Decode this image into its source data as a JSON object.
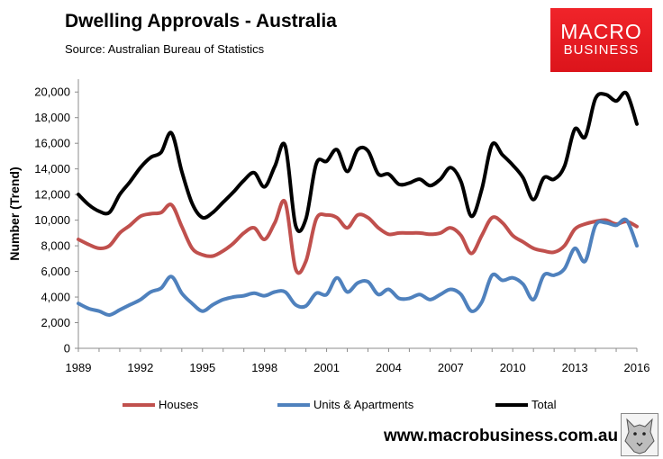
{
  "header": {
    "title": "Dwelling Approvals - Australia",
    "subtitle": "Source:  Australian Bureau of Statistics"
  },
  "logo": {
    "line1": "MACRO",
    "line2": "BUSINESS",
    "color": "#e31b23"
  },
  "footer": {
    "website": "www.macrobusiness.com.au"
  },
  "chart_data": {
    "type": "line",
    "title": "Dwelling Approvals - Australia",
    "xlabel": "",
    "ylabel": "Number (Trend)",
    "xlim": [
      1989,
      2016
    ],
    "ylim": [
      0,
      21000
    ],
    "x_ticks": [
      "1989",
      "1992",
      "1995",
      "1998",
      "2001",
      "2004",
      "2007",
      "2010",
      "2013",
      "2016"
    ],
    "y_ticks": [
      "0",
      "2,000",
      "4,000",
      "6,000",
      "8,000",
      "10,000",
      "12,000",
      "14,000",
      "16,000",
      "18,000",
      "20,000"
    ],
    "grid": false,
    "legend_position": "bottom",
    "series": [
      {
        "name": "Houses",
        "color": "#c0504d",
        "points": [
          [
            1989.0,
            8500
          ],
          [
            1989.5,
            8100
          ],
          [
            1990.0,
            7800
          ],
          [
            1990.5,
            8000
          ],
          [
            1991.0,
            9000
          ],
          [
            1991.5,
            9600
          ],
          [
            1992.0,
            10300
          ],
          [
            1992.5,
            10500
          ],
          [
            1993.0,
            10600
          ],
          [
            1993.5,
            11200
          ],
          [
            1994.0,
            9500
          ],
          [
            1994.5,
            7800
          ],
          [
            1995.0,
            7300
          ],
          [
            1995.5,
            7200
          ],
          [
            1996.0,
            7600
          ],
          [
            1996.5,
            8200
          ],
          [
            1997.0,
            9000
          ],
          [
            1997.5,
            9400
          ],
          [
            1998.0,
            8500
          ],
          [
            1998.5,
            9800
          ],
          [
            1999.0,
            11400
          ],
          [
            1999.5,
            6200
          ],
          [
            2000.0,
            6800
          ],
          [
            2000.5,
            10100
          ],
          [
            2001.0,
            10400
          ],
          [
            2001.5,
            10200
          ],
          [
            2002.0,
            9400
          ],
          [
            2002.5,
            10400
          ],
          [
            2003.0,
            10200
          ],
          [
            2003.5,
            9400
          ],
          [
            2004.0,
            8900
          ],
          [
            2004.5,
            9000
          ],
          [
            2005.0,
            9000
          ],
          [
            2005.5,
            9000
          ],
          [
            2006.0,
            8900
          ],
          [
            2006.5,
            9000
          ],
          [
            2007.0,
            9400
          ],
          [
            2007.5,
            8800
          ],
          [
            2008.0,
            7400
          ],
          [
            2008.5,
            8800
          ],
          [
            2009.0,
            10200
          ],
          [
            2009.5,
            9800
          ],
          [
            2010.0,
            8800
          ],
          [
            2010.5,
            8300
          ],
          [
            2011.0,
            7800
          ],
          [
            2011.5,
            7600
          ],
          [
            2012.0,
            7500
          ],
          [
            2012.5,
            8000
          ],
          [
            2013.0,
            9300
          ],
          [
            2013.5,
            9700
          ],
          [
            2014.0,
            9900
          ],
          [
            2014.5,
            10000
          ],
          [
            2015.0,
            9700
          ],
          [
            2015.5,
            9900
          ],
          [
            2016.0,
            9500
          ]
        ]
      },
      {
        "name": "Units & Apartments",
        "color": "#4f81bd",
        "points": [
          [
            1989.0,
            3500
          ],
          [
            1989.5,
            3100
          ],
          [
            1990.0,
            2900
          ],
          [
            1990.5,
            2600
          ],
          [
            1991.0,
            3000
          ],
          [
            1991.5,
            3400
          ],
          [
            1992.0,
            3800
          ],
          [
            1992.5,
            4400
          ],
          [
            1993.0,
            4700
          ],
          [
            1993.5,
            5600
          ],
          [
            1994.0,
            4300
          ],
          [
            1994.5,
            3500
          ],
          [
            1995.0,
            2900
          ],
          [
            1995.5,
            3400
          ],
          [
            1996.0,
            3800
          ],
          [
            1996.5,
            4000
          ],
          [
            1997.0,
            4100
          ],
          [
            1997.5,
            4300
          ],
          [
            1998.0,
            4100
          ],
          [
            1998.5,
            4400
          ],
          [
            1999.0,
            4400
          ],
          [
            1999.5,
            3400
          ],
          [
            2000.0,
            3300
          ],
          [
            2000.5,
            4300
          ],
          [
            2001.0,
            4200
          ],
          [
            2001.5,
            5500
          ],
          [
            2002.0,
            4400
          ],
          [
            2002.5,
            5100
          ],
          [
            2003.0,
            5200
          ],
          [
            2003.5,
            4200
          ],
          [
            2004.0,
            4600
          ],
          [
            2004.5,
            3900
          ],
          [
            2005.0,
            3900
          ],
          [
            2005.5,
            4200
          ],
          [
            2006.0,
            3800
          ],
          [
            2006.5,
            4200
          ],
          [
            2007.0,
            4600
          ],
          [
            2007.5,
            4200
          ],
          [
            2008.0,
            2900
          ],
          [
            2008.5,
            3600
          ],
          [
            2009.0,
            5700
          ],
          [
            2009.5,
            5300
          ],
          [
            2010.0,
            5500
          ],
          [
            2010.5,
            5000
          ],
          [
            2011.0,
            3800
          ],
          [
            2011.5,
            5700
          ],
          [
            2012.0,
            5700
          ],
          [
            2012.5,
            6200
          ],
          [
            2013.0,
            7800
          ],
          [
            2013.5,
            6800
          ],
          [
            2014.0,
            9600
          ],
          [
            2014.5,
            9800
          ],
          [
            2015.0,
            9600
          ],
          [
            2015.5,
            10000
          ],
          [
            2016.0,
            8000
          ]
        ]
      },
      {
        "name": "Total",
        "color": "#000000",
        "points": [
          [
            1989.0,
            12000
          ],
          [
            1989.5,
            11200
          ],
          [
            1990.0,
            10700
          ],
          [
            1990.5,
            10600
          ],
          [
            1991.0,
            12000
          ],
          [
            1991.5,
            13000
          ],
          [
            1992.0,
            14100
          ],
          [
            1992.5,
            14900
          ],
          [
            1993.0,
            15300
          ],
          [
            1993.5,
            16800
          ],
          [
            1994.0,
            13800
          ],
          [
            1994.5,
            11300
          ],
          [
            1995.0,
            10200
          ],
          [
            1995.5,
            10600
          ],
          [
            1996.0,
            11400
          ],
          [
            1996.5,
            12200
          ],
          [
            1997.0,
            13100
          ],
          [
            1997.5,
            13700
          ],
          [
            1998.0,
            12600
          ],
          [
            1998.5,
            14200
          ],
          [
            1999.0,
            15800
          ],
          [
            1999.5,
            9600
          ],
          [
            2000.0,
            10100
          ],
          [
            2000.5,
            14400
          ],
          [
            2001.0,
            14600
          ],
          [
            2001.5,
            15500
          ],
          [
            2002.0,
            13800
          ],
          [
            2002.5,
            15500
          ],
          [
            2003.0,
            15400
          ],
          [
            2003.5,
            13600
          ],
          [
            2004.0,
            13600
          ],
          [
            2004.5,
            12800
          ],
          [
            2005.0,
            12900
          ],
          [
            2005.5,
            13200
          ],
          [
            2006.0,
            12700
          ],
          [
            2006.5,
            13200
          ],
          [
            2007.0,
            14100
          ],
          [
            2007.5,
            13000
          ],
          [
            2008.0,
            10300
          ],
          [
            2008.5,
            12400
          ],
          [
            2009.0,
            15900
          ],
          [
            2009.5,
            15100
          ],
          [
            2010.0,
            14300
          ],
          [
            2010.5,
            13300
          ],
          [
            2011.0,
            11600
          ],
          [
            2011.5,
            13300
          ],
          [
            2012.0,
            13200
          ],
          [
            2012.5,
            14200
          ],
          [
            2013.0,
            17100
          ],
          [
            2013.5,
            16500
          ],
          [
            2014.0,
            19500
          ],
          [
            2014.5,
            19800
          ],
          [
            2015.0,
            19300
          ],
          [
            2015.5,
            19900
          ],
          [
            2016.0,
            17500
          ]
        ]
      }
    ]
  }
}
